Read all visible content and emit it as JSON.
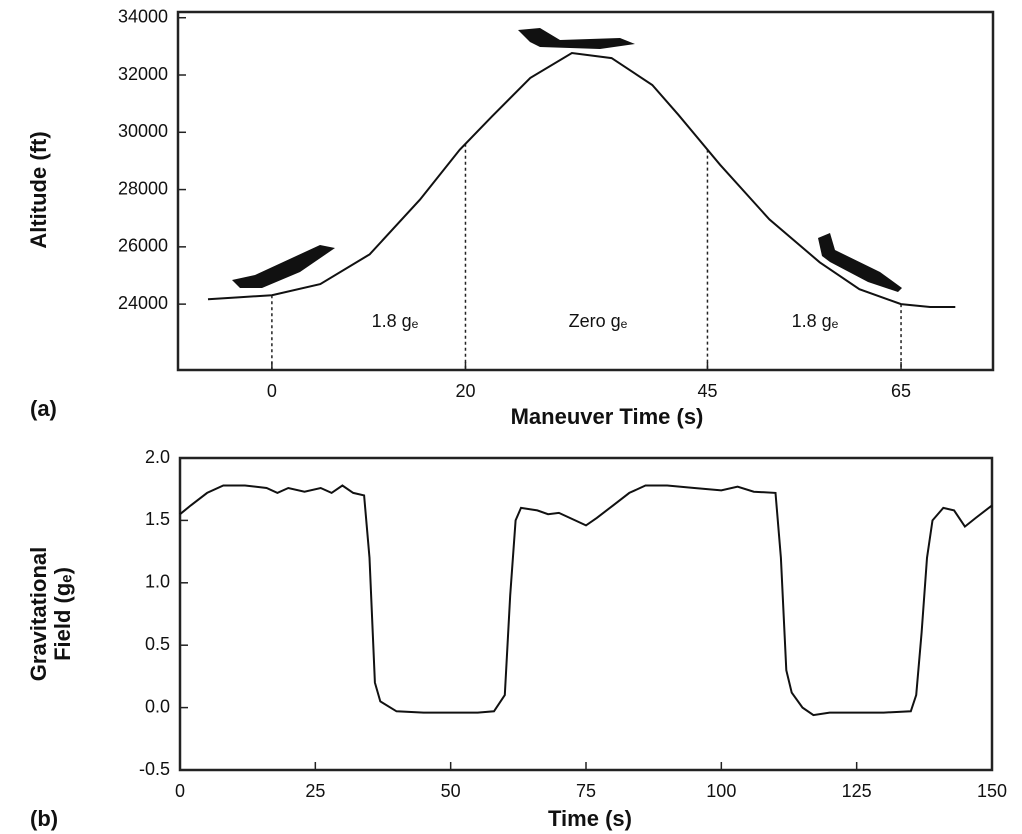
{
  "chart_data": [
    {
      "type": "line",
      "panel": "(a)",
      "xlabel": "Maneuver Time (s)",
      "ylabel": [
        "Altitude  (ft)"
      ],
      "x": [
        -6.6,
        -3.3,
        0,
        5.0,
        10.1,
        15.3,
        19.4,
        22.7,
        26.7,
        31.0,
        35.1,
        39.3,
        42.0,
        46.3,
        51.4,
        56.6,
        60.7,
        65,
        68.0,
        70.6
      ],
      "values": [
        24170,
        24240,
        24310,
        24700,
        25740,
        27650,
        29390,
        30540,
        31900,
        32770,
        32590,
        31650,
        30610,
        28870,
        26960,
        25460,
        24520,
        24000,
        23900,
        23900
      ],
      "color": "#111111",
      "xlim": [
        -9.7,
        74.5
      ],
      "ylim": [
        21700,
        34200
      ],
      "xticks": [
        0,
        20,
        45,
        65
      ],
      "yticks": [
        24000,
        26000,
        28000,
        30000,
        32000,
        34000
      ],
      "droplines": true,
      "grid": false,
      "annotations": [
        "1.8 gₑ",
        "Zero gₑ",
        "1.8 gₑ"
      ]
    },
    {
      "type": "line",
      "panel": "(b)",
      "xlabel": "Time (s)",
      "ylabel": [
        "Gravitational",
        "Field (gₑ)"
      ],
      "x": [
        0,
        2,
        5,
        8,
        12,
        16,
        18,
        20,
        23,
        26,
        28,
        30,
        32,
        34,
        35,
        36,
        37,
        40,
        45,
        50,
        55,
        58,
        60,
        61,
        62,
        63,
        66,
        68,
        70,
        73,
        75,
        77,
        80,
        83,
        86,
        90,
        95,
        100,
        103,
        106,
        110,
        111,
        112,
        113,
        115,
        117,
        120,
        125,
        130,
        135,
        136,
        137,
        138,
        139,
        141,
        143,
        145,
        147,
        150
      ],
      "values": [
        1.55,
        1.62,
        1.72,
        1.78,
        1.78,
        1.76,
        1.72,
        1.76,
        1.73,
        1.76,
        1.72,
        1.78,
        1.72,
        1.7,
        1.2,
        0.2,
        0.05,
        -0.03,
        -0.04,
        -0.04,
        -0.04,
        -0.03,
        0.1,
        0.9,
        1.5,
        1.6,
        1.58,
        1.55,
        1.56,
        1.5,
        1.46,
        1.52,
        1.62,
        1.72,
        1.78,
        1.78,
        1.76,
        1.74,
        1.77,
        1.73,
        1.72,
        1.2,
        0.3,
        0.12,
        0.0,
        -0.06,
        -0.04,
        -0.04,
        -0.04,
        -0.03,
        0.1,
        0.6,
        1.2,
        1.5,
        1.6,
        1.58,
        1.45,
        1.52,
        1.62
      ],
      "color": "#111111",
      "xlim": [
        0,
        150
      ],
      "ylim": [
        -0.5,
        2.0
      ],
      "xticks": [
        0,
        25,
        50,
        75,
        100,
        125,
        150
      ],
      "yticks": [
        -0.5,
        {
          "value": 0,
          "label": "0.0"
        },
        0.5,
        {
          "value": 1,
          "label": "1.0"
        },
        1.5,
        {
          "value": 2,
          "label": "2.0"
        }
      ],
      "droplines": false,
      "grid": false
    }
  ]
}
